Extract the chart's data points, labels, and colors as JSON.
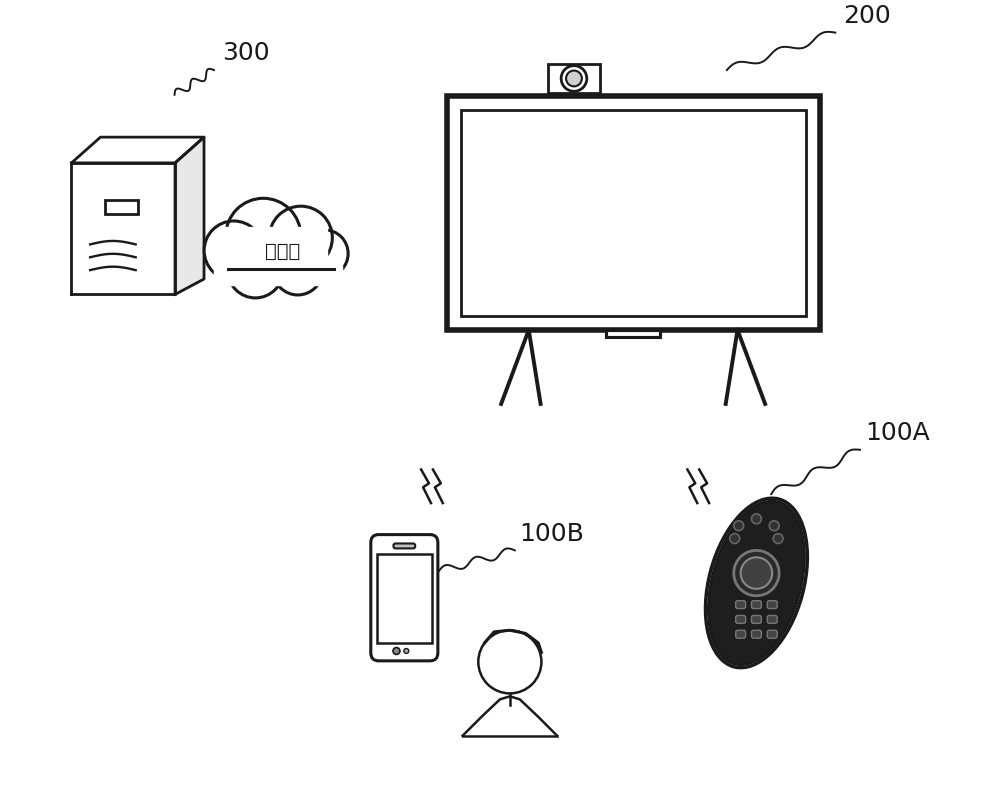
{
  "background_color": "#ffffff",
  "label_300": "300",
  "label_200": "200",
  "label_100A": "100A",
  "label_100B": "100B",
  "cloud_text": "互联网",
  "line_color": "#1a1a1a",
  "text_color": "#1a1a1a",
  "figsize": [
    10.0,
    7.93
  ]
}
